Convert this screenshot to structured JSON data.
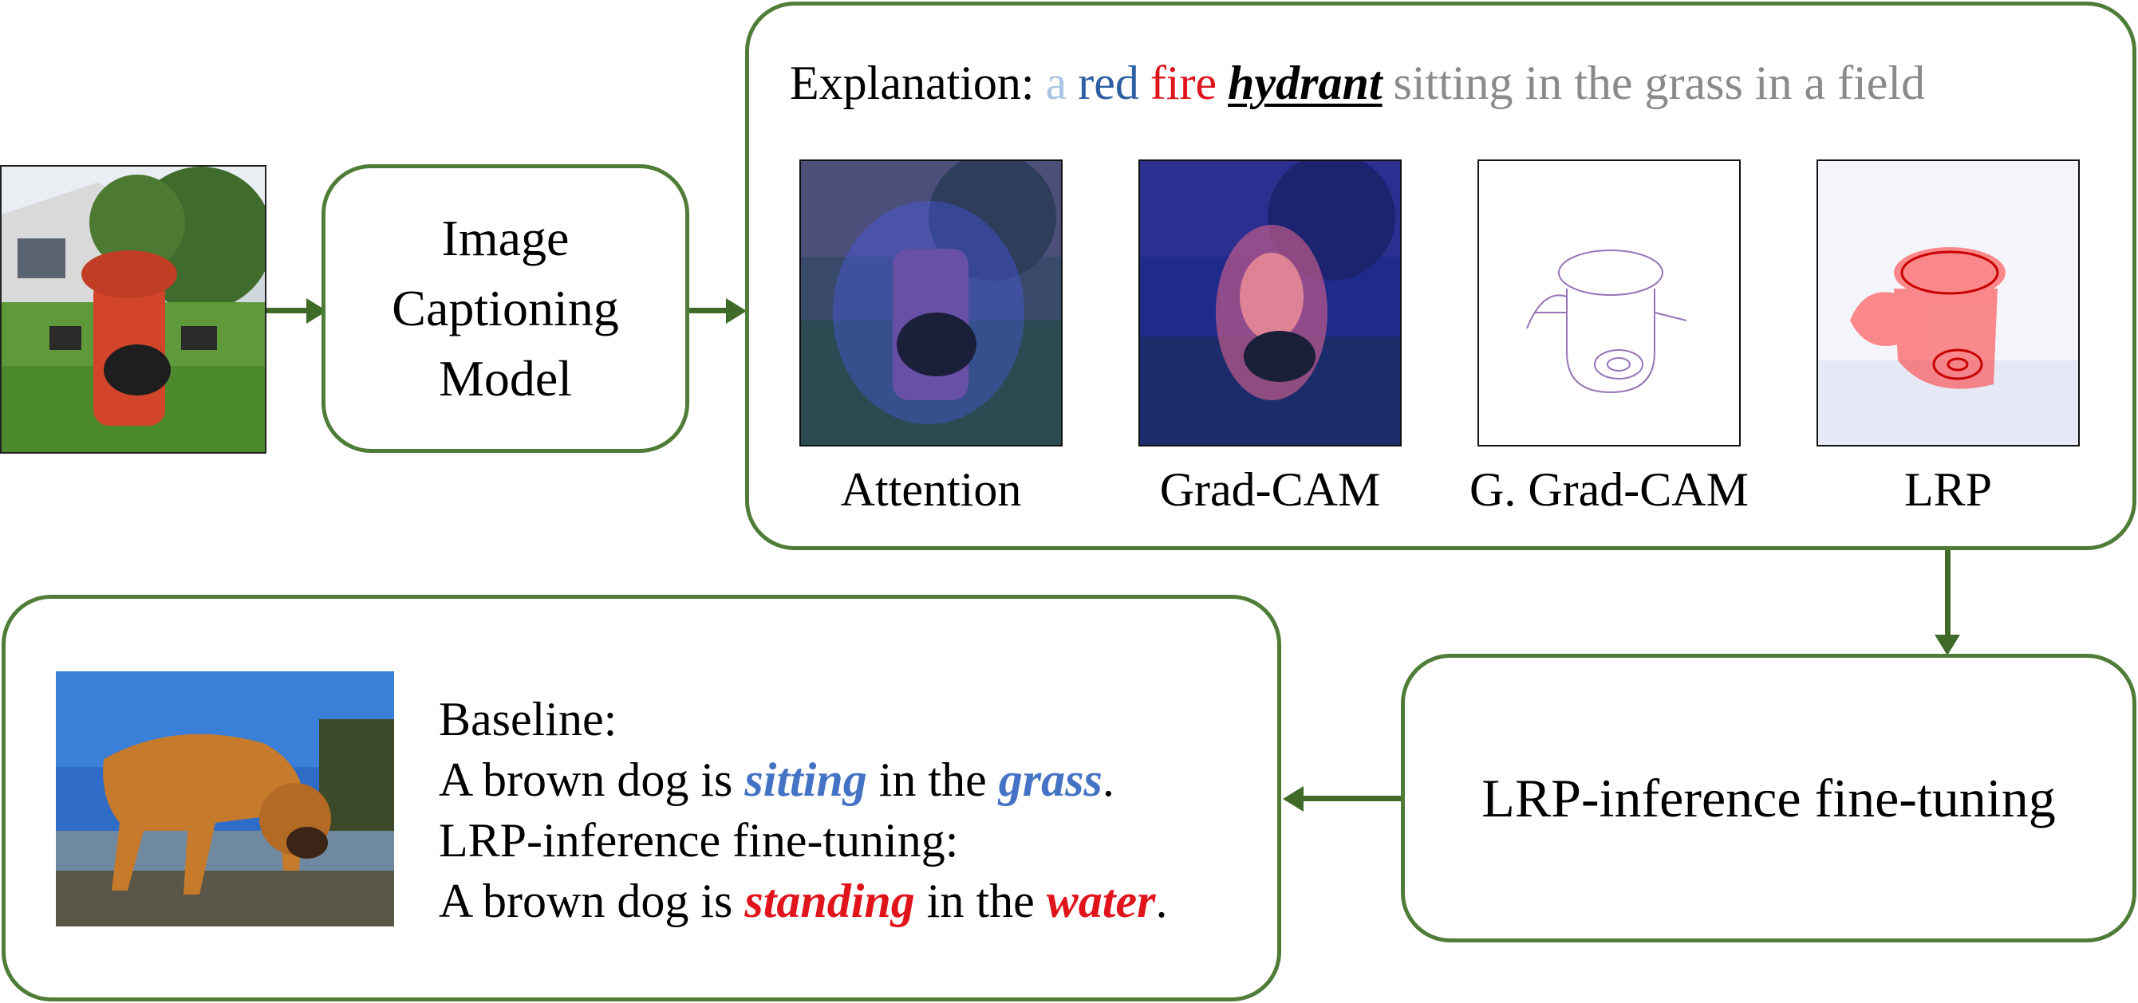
{
  "model_box": {
    "line1": "Image",
    "line2": "Captioning",
    "line3": "Model"
  },
  "explanation": {
    "prefix": "Explanation:",
    "tokens": [
      {
        "text": "a",
        "color": "#a9c4e4"
      },
      {
        "text": "red",
        "color": "#2e5fa3"
      },
      {
        "text": "fire",
        "color": "#e0141b"
      },
      {
        "text": "hydrant",
        "color": "#000000"
      },
      {
        "text": "sitting in the grass in a field",
        "color": "#8a8a8a"
      }
    ]
  },
  "panels": [
    {
      "label": "Attention"
    },
    {
      "label": "Grad-CAM"
    },
    {
      "label": "G. Grad-CAM"
    },
    {
      "label": "LRP"
    }
  ],
  "finetune_box": {
    "label": "LRP-inference fine-tuning"
  },
  "captions": {
    "baseline_heading": "Baseline:",
    "baseline": {
      "p1": "A brown dog is",
      "kw1": "sitting",
      "p2": "in the",
      "kw2": "grass",
      "end": "."
    },
    "lrp_heading": "LRP-inference fine-tuning:",
    "lrp": {
      "p1": "A brown dog is",
      "kw1": "standing",
      "p2": "in the",
      "kw2": "water",
      "end": "."
    }
  },
  "colors": {
    "box_border": "#4f7d37",
    "arrow": "#3f6a28",
    "baseline_highlight": "#4472c4",
    "lrp_highlight": "#e0141b"
  }
}
